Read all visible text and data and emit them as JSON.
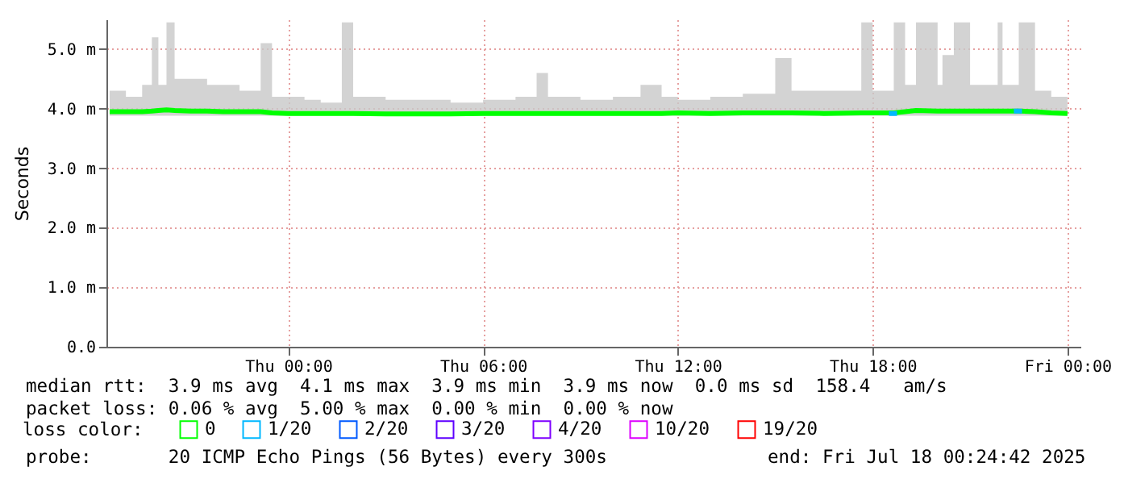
{
  "chart_data": {
    "type": "line",
    "ylabel": "Seconds",
    "x": [
      "2025-07-16T18:30",
      "2025-07-16T19:00",
      "2025-07-16T19:30",
      "2025-07-16T19:48",
      "2025-07-16T20:00",
      "2025-07-16T20:15",
      "2025-07-16T20:30",
      "2025-07-16T21:00",
      "2025-07-16T21:30",
      "2025-07-16T22:00",
      "2025-07-16T22:30",
      "2025-07-16T23:09",
      "2025-07-16T23:30",
      "2025-07-17T00:00",
      "2025-07-17T00:30",
      "2025-07-17T01:00",
      "2025-07-17T01:39",
      "2025-07-17T02:00",
      "2025-07-17T03:00",
      "2025-07-17T04:00",
      "2025-07-17T05:00",
      "2025-07-17T06:00",
      "2025-07-17T07:00",
      "2025-07-17T07:39",
      "2025-07-17T08:00",
      "2025-07-17T09:00",
      "2025-07-17T10:00",
      "2025-07-17T10:51",
      "2025-07-17T11:30",
      "2025-07-17T12:00",
      "2025-07-17T13:00",
      "2025-07-17T14:00",
      "2025-07-17T15:00",
      "2025-07-17T15:30",
      "2025-07-17T16:30",
      "2025-07-17T17:39",
      "2025-07-17T18:00",
      "2025-07-17T18:39",
      "2025-07-17T19:00",
      "2025-07-17T19:20",
      "2025-07-17T20:00",
      "2025-07-17T20:09",
      "2025-07-17T20:30",
      "2025-07-17T21:00",
      "2025-07-17T21:51",
      "2025-07-17T22:00",
      "2025-07-17T22:30",
      "2025-07-17T23:00",
      "2025-07-17T23:30",
      "2025-07-18T00:00"
    ],
    "series": [
      {
        "name": "0",
        "color": "#00ff00",
        "values": [
          3.95,
          3.95,
          3.95,
          3.96,
          3.97,
          3.98,
          3.97,
          3.96,
          3.96,
          3.95,
          3.95,
          3.95,
          3.93,
          3.92,
          3.92,
          3.92,
          3.92,
          3.92,
          3.91,
          3.91,
          3.91,
          3.92,
          3.92,
          3.92,
          3.92,
          3.92,
          3.92,
          3.92,
          3.92,
          3.93,
          3.92,
          3.93,
          3.93,
          3.93,
          3.92,
          3.93,
          3.93,
          3.93,
          3.95,
          3.97,
          3.96,
          3.96,
          3.96,
          3.96,
          3.96,
          3.96,
          3.96,
          3.95,
          3.93,
          3.92
        ],
        "lower": [
          3.88,
          3.88,
          3.88,
          3.88,
          3.88,
          3.88,
          3.88,
          3.88,
          3.88,
          3.88,
          3.88,
          3.88,
          3.88,
          3.88,
          3.88,
          3.88,
          3.88,
          3.88,
          3.88,
          3.88,
          3.88,
          3.88,
          3.88,
          3.88,
          3.88,
          3.88,
          3.88,
          3.88,
          3.88,
          3.88,
          3.88,
          3.88,
          3.88,
          3.88,
          3.88,
          3.88,
          3.88,
          3.88,
          3.88,
          3.88,
          3.88,
          3.88,
          3.88,
          3.88,
          3.88,
          3.88,
          3.88,
          3.88,
          3.88,
          3.88
        ],
        "upper": [
          4.3,
          4.2,
          4.4,
          5.2,
          4.4,
          5.45,
          4.5,
          4.5,
          4.4,
          4.4,
          4.3,
          5.1,
          4.2,
          4.2,
          4.15,
          4.1,
          5.45,
          4.2,
          4.15,
          4.15,
          4.1,
          4.15,
          4.2,
          4.6,
          4.2,
          4.15,
          4.2,
          4.4,
          4.2,
          4.15,
          4.2,
          4.25,
          4.85,
          4.3,
          4.3,
          5.45,
          4.3,
          5.45,
          4.4,
          5.45,
          4.4,
          4.9,
          5.45,
          4.4,
          5.45,
          4.4,
          5.45,
          4.3,
          4.2,
          4.2
        ]
      },
      {
        "name": "1/20",
        "color": "#00b8ff",
        "x": [
          "2025-07-17T18:30",
          "2025-07-17T18:45",
          "2025-07-17T18:46",
          "2025-07-17T22:21",
          "2025-07-17T22:36"
        ],
        "values": [
          3.92,
          3.92,
          null,
          3.96,
          3.96
        ]
      },
      {
        "name": "2/20",
        "color": "#0059ff",
        "values": [
          null,
          null,
          null,
          null,
          null,
          null,
          null,
          null,
          null,
          null,
          null,
          null,
          null,
          null,
          null,
          null,
          null,
          null,
          null,
          null,
          null,
          null,
          null,
          null,
          null,
          null,
          null,
          null,
          null,
          null,
          null,
          null,
          null,
          null,
          null,
          null,
          null,
          null,
          null,
          null,
          null,
          null,
          null,
          null,
          null,
          null,
          null,
          null,
          null,
          null
        ]
      },
      {
        "name": "3/20",
        "color": "#5e00ff",
        "values": [
          null,
          null,
          null,
          null,
          null,
          null,
          null,
          null,
          null,
          null,
          null,
          null,
          null,
          null,
          null,
          null,
          null,
          null,
          null,
          null,
          null,
          null,
          null,
          null,
          null,
          null,
          null,
          null,
          null,
          null,
          null,
          null,
          null,
          null,
          null,
          null,
          null,
          null,
          null,
          null,
          null,
          null,
          null,
          null,
          null,
          null,
          null,
          null,
          null,
          null
        ]
      },
      {
        "name": "4/20",
        "color": "#7e00ff",
        "values": [
          null,
          null,
          null,
          null,
          null,
          null,
          null,
          null,
          null,
          null,
          null,
          null,
          null,
          null,
          null,
          null,
          null,
          null,
          null,
          null,
          null,
          null,
          null,
          null,
          null,
          null,
          null,
          null,
          null,
          null,
          null,
          null,
          null,
          null,
          null,
          null,
          null,
          null,
          null,
          null,
          null,
          null,
          null,
          null,
          null,
          null,
          null,
          null,
          null,
          null
        ]
      },
      {
        "name": "10/20",
        "color": "#dd00ff",
        "values": [
          null,
          null,
          null,
          null,
          null,
          null,
          null,
          null,
          null,
          null,
          null,
          null,
          null,
          null,
          null,
          null,
          null,
          null,
          null,
          null,
          null,
          null,
          null,
          null,
          null,
          null,
          null,
          null,
          null,
          null,
          null,
          null,
          null,
          null,
          null,
          null,
          null,
          null,
          null,
          null,
          null,
          null,
          null,
          null,
          null,
          null,
          null,
          null,
          null,
          null
        ]
      },
      {
        "name": "19/20",
        "color": "#ff0000",
        "values": [
          null,
          null,
          null,
          null,
          null,
          null,
          null,
          null,
          null,
          null,
          null,
          null,
          null,
          null,
          null,
          null,
          null,
          null,
          null,
          null,
          null,
          null,
          null,
          null,
          null,
          null,
          null,
          null,
          null,
          null,
          null,
          null,
          null,
          null,
          null,
          null,
          null,
          null,
          null,
          null,
          null,
          null,
          null,
          null,
          null,
          null,
          null,
          null,
          null,
          null
        ]
      }
    ],
    "legend": "bottom",
    "legend_title": "loss color:",
    "grid": true,
    "xlim": [
      "2025-07-16T18:24",
      "2025-07-18T00:24"
    ],
    "xticks": [
      {
        "value": "2025-07-17T00:00",
        "label": "Thu 00:00"
      },
      {
        "value": "2025-07-17T06:00",
        "label": "Thu 06:00"
      },
      {
        "value": "2025-07-17T12:00",
        "label": "Thu 12:00"
      },
      {
        "value": "2025-07-17T18:00",
        "label": "Thu 18:00"
      },
      {
        "value": "2025-07-18T00:00",
        "label": "Fri 00:00"
      }
    ],
    "ylim": [
      0,
      5.5
    ],
    "yticks": [
      {
        "value": 0,
        "label": "0.0"
      },
      {
        "value": 1,
        "label": "1.0 m"
      },
      {
        "value": 2,
        "label": "2.0 m"
      },
      {
        "value": 3,
        "label": "3.0 m"
      },
      {
        "value": 4,
        "label": "4.0 m"
      },
      {
        "value": 5,
        "label": "5.0 m"
      }
    ],
    "annotations": [
      "median rtt:  3.9 ms avg  4.1 ms max  3.9 ms min  3.9 ms now  0.0 ms sd  158.4   am/s",
      "packet loss: 0.06 % avg  5.00 % max  0.00 % min  0.00 % now",
      "probe:       20 ICMP Echo Pings (56 Bytes) every 300s",
      "end: Fri Jul 18 00:24:42 2025"
    ]
  }
}
